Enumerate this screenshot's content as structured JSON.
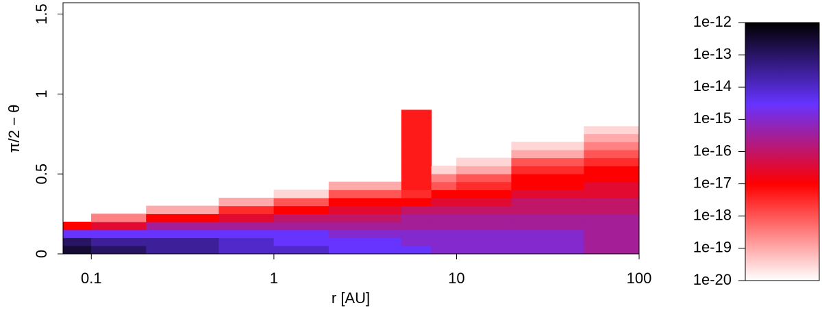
{
  "chart_data": {
    "type": "heatmap",
    "x_label": "r [AU]",
    "y_label": "π/2 − θ",
    "xscale": "log",
    "xlim": [
      0.07,
      100
    ],
    "xticks": [
      0.1,
      1,
      10,
      100
    ],
    "ylim": [
      0,
      1.5708
    ],
    "yticks": [
      0,
      0.5,
      1,
      1.5
    ],
    "x_edges": [
      0.07,
      0.1,
      0.2,
      0.5,
      1,
      2,
      5,
      7.3,
      10,
      20,
      50,
      100
    ],
    "y_edges": [
      0,
      0.05,
      0.1,
      0.15,
      0.2,
      0.25,
      0.3,
      0.35,
      0.4,
      0.45,
      0.5,
      0.55,
      0.6,
      0.65,
      0.7,
      0.75,
      0.8,
      0.85,
      0.9
    ],
    "z": [
      [
        3e-13,
        1e-13,
        3e-14,
        1e-14,
        1e-14,
        3e-15,
        3e-15,
        1e-15,
        1e-15,
        1e-15,
        3e-16
      ],
      [
        1e-13,
        3e-14,
        3e-14,
        1e-14,
        3e-15,
        3e-15,
        1e-15,
        1e-15,
        1e-15,
        1e-15,
        3e-16
      ],
      [
        3e-15,
        3e-15,
        3e-15,
        3e-15,
        3e-15,
        1e-15,
        1e-15,
        1e-15,
        1e-15,
        1e-15,
        3e-16
      ],
      [
        1e-17,
        3e-17,
        3e-16,
        3e-16,
        3e-16,
        3e-16,
        3e-16,
        3e-16,
        3e-16,
        3e-16,
        3e-16
      ],
      [
        null,
        3e-19,
        1e-17,
        3e-17,
        1e-16,
        1e-16,
        3e-16,
        3e-16,
        3e-16,
        3e-16,
        3e-16
      ],
      [
        null,
        null,
        1e-19,
        3e-18,
        1e-17,
        3e-17,
        1e-16,
        1e-16,
        1e-16,
        1e-16,
        1e-16
      ],
      [
        null,
        null,
        null,
        1e-19,
        1e-18,
        1e-17,
        1e-17,
        3e-17,
        3e-17,
        1e-16,
        1e-16
      ],
      [
        null,
        null,
        null,
        null,
        3e-20,
        1e-18,
        3e-18,
        1e-17,
        1e-17,
        3e-17,
        3e-17
      ],
      [
        null,
        null,
        null,
        null,
        null,
        1e-19,
        5e-18,
        1e-18,
        3e-18,
        1e-17,
        3e-17
      ],
      [
        null,
        null,
        null,
        null,
        null,
        null,
        5e-18,
        3e-19,
        1e-18,
        1e-17,
        1e-17
      ],
      [
        null,
        null,
        null,
        null,
        null,
        null,
        5e-18,
        3e-20,
        1e-19,
        3e-18,
        1e-17
      ],
      [
        null,
        null,
        null,
        null,
        null,
        null,
        5e-18,
        null,
        3e-20,
        1e-18,
        3e-18
      ],
      [
        null,
        null,
        null,
        null,
        null,
        null,
        5e-18,
        null,
        null,
        1e-19,
        1e-18
      ],
      [
        null,
        null,
        null,
        null,
        null,
        null,
        5e-18,
        null,
        null,
        3e-20,
        3e-19
      ],
      [
        null,
        null,
        null,
        null,
        null,
        null,
        5e-18,
        null,
        null,
        null,
        1e-19
      ],
      [
        null,
        null,
        null,
        null,
        null,
        null,
        5e-18,
        null,
        null,
        null,
        3e-20
      ],
      [
        null,
        null,
        null,
        null,
        null,
        null,
        5e-18,
        null,
        null,
        null,
        1e-20
      ],
      [
        null,
        null,
        null,
        null,
        null,
        null,
        5e-18,
        null,
        null,
        null,
        null
      ]
    ],
    "zscale": "log",
    "zlim": [
      1e-20,
      1e-12
    ],
    "zticks": [
      {
        "value": 1e-12,
        "label": "1e-12"
      },
      {
        "value": 1e-13,
        "label": "1e-13"
      },
      {
        "value": 1e-14,
        "label": "1e-14"
      },
      {
        "value": 1e-15,
        "label": "1e-15"
      },
      {
        "value": 1e-16,
        "label": "1e-16"
      },
      {
        "value": 1e-17,
        "label": "1e-17"
      },
      {
        "value": 1e-18,
        "label": "1e-18"
      },
      {
        "value": 1e-19,
        "label": "1e-19"
      },
      {
        "value": 1e-20,
        "label": "1e-20"
      }
    ],
    "colorscale": [
      [
        1e-20,
        "#ffffff"
      ],
      [
        1e-17,
        "#ff0000"
      ],
      [
        3e-15,
        "#6633ff"
      ],
      [
        1e-12,
        "#000000"
      ]
    ]
  }
}
